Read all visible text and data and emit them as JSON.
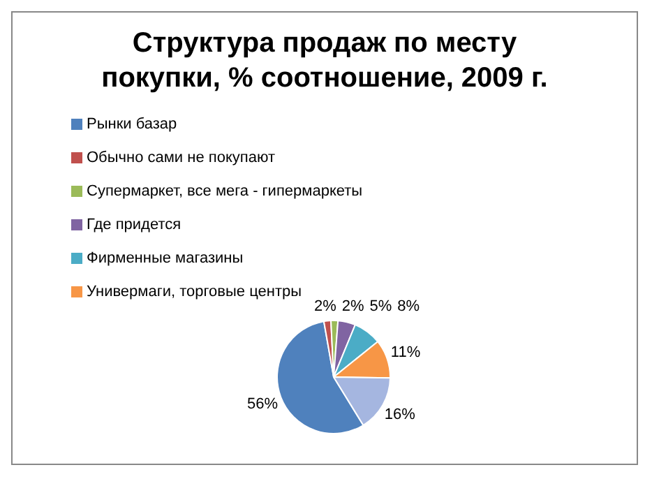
{
  "chart_data": {
    "type": "pie",
    "title": "Структура продаж по месту покупки, % соотношение,  2009 г.",
    "categories": [
      "Рынки базар",
      "Обычно сами не покупают",
      "Супермаркет, все мега - гипермаркеты",
      "Где придется",
      "Фирменные магазины",
      "Универмаги, торговые центры",
      null
    ],
    "values": [
      56,
      2,
      2,
      5,
      8,
      11,
      16
    ],
    "value_labels": [
      "56%",
      "2%",
      "2%",
      "5%",
      "8%",
      "11%",
      "16%"
    ],
    "colors": [
      "#4f81bd",
      "#c0504d",
      "#9bbb59",
      "#8064a2",
      "#4bacc6",
      "#f79646",
      "#a5b6e0"
    ],
    "legend": "top left"
  }
}
